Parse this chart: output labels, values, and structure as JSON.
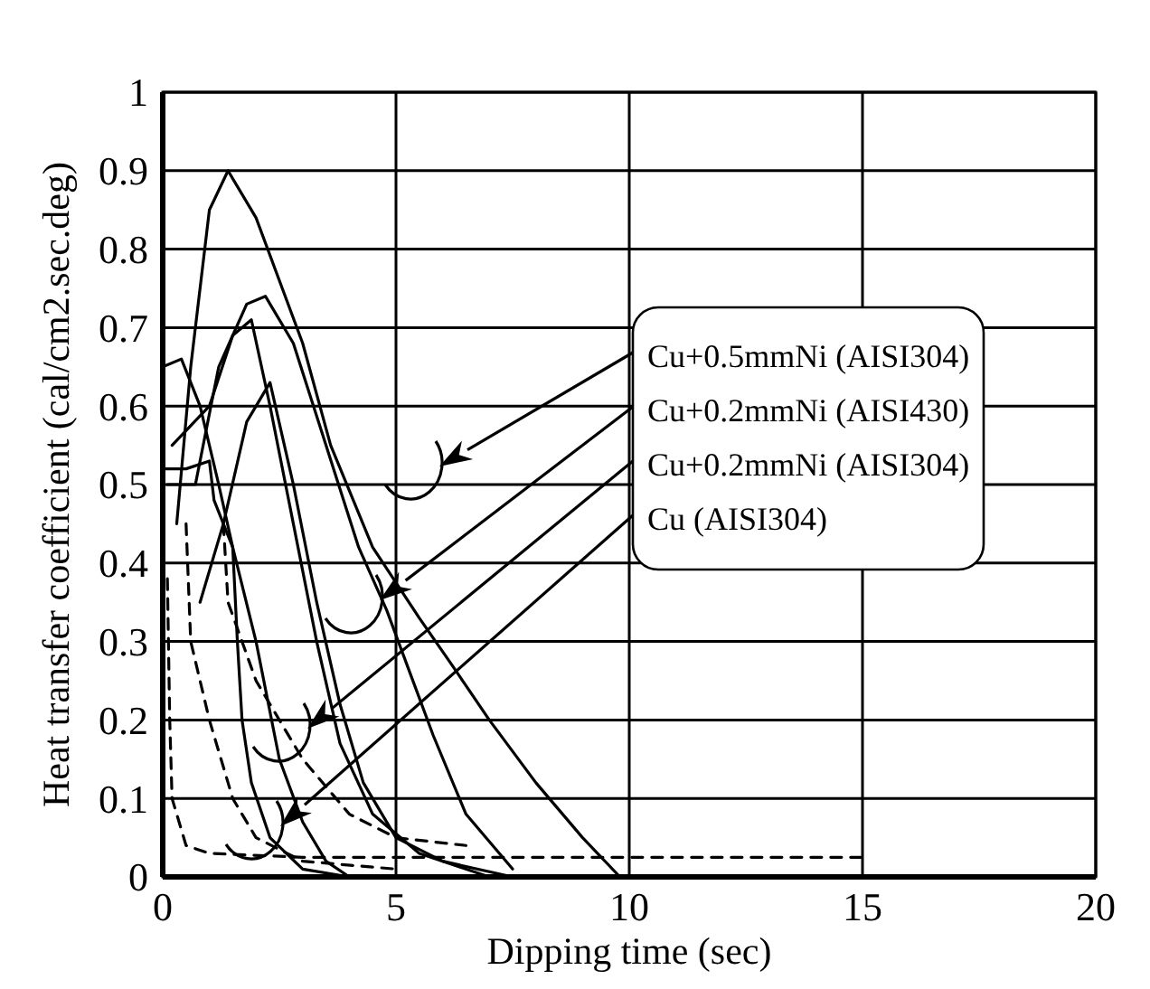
{
  "chart_data": {
    "type": "line",
    "xlabel": "Dipping time (sec)",
    "ylabel": "Heat transfer coefficient (cal/cm2.sec.deg)",
    "xlim": [
      0,
      20
    ],
    "ylim": [
      0,
      1
    ],
    "xticks": [
      0,
      5,
      10,
      15,
      20
    ],
    "yticks": [
      0,
      0.1,
      0.2,
      0.3,
      0.4,
      0.5,
      0.6,
      0.7,
      0.8,
      0.9,
      1
    ],
    "grid": true,
    "marker": "none",
    "series": [
      {
        "color": "#000000",
        "x": [
          0.3,
          0.6,
          1.0,
          1.4,
          2.0,
          3.0,
          3.6,
          4.5,
          5.5,
          6.2,
          7.0,
          8.0,
          9.0,
          9.8
        ],
        "values": [
          0.45,
          0.65,
          0.85,
          0.9,
          0.84,
          0.68,
          0.55,
          0.42,
          0.33,
          0.27,
          0.2,
          0.12,
          0.05,
          0
        ]
      },
      {
        "color": "#000000",
        "x": [
          0.1,
          0.7,
          1.2,
          1.8,
          2.2,
          2.8,
          3.5,
          4.2,
          4.8,
          5.3,
          5.8,
          6.5,
          7.5
        ],
        "values": [
          0.5,
          0.5,
          0.65,
          0.73,
          0.74,
          0.68,
          0.55,
          0.42,
          0.34,
          0.26,
          0.18,
          0.08,
          0.01
        ]
      },
      {
        "color": "#000000",
        "x": [
          0.2,
          1.0,
          1.5,
          1.9,
          2.3,
          2.8,
          3.3,
          3.8,
          4.5,
          5.5,
          7.0
        ],
        "values": [
          0.55,
          0.6,
          0.69,
          0.71,
          0.6,
          0.45,
          0.3,
          0.17,
          0.08,
          0.03,
          0
        ]
      },
      {
        "color": "#000000",
        "x": [
          0.8,
          1.3,
          1.8,
          2.3,
          2.8,
          3.3,
          3.8,
          4.3,
          5.0,
          6.0,
          7.5
        ],
        "values": [
          0.35,
          0.45,
          0.58,
          0.63,
          0.5,
          0.35,
          0.22,
          0.12,
          0.05,
          0.02,
          0
        ]
      },
      {
        "color": "#000000",
        "x": [
          0,
          0.5,
          1.0,
          1.1,
          1.5,
          2.0,
          2.5,
          3.0,
          3.5,
          4.0
        ],
        "values": [
          0.52,
          0.52,
          0.53,
          0.48,
          0.42,
          0.3,
          0.15,
          0.07,
          0.02,
          0
        ]
      },
      {
        "color": "#000000",
        "x": [
          0,
          0.4,
          0.8,
          1.2,
          1.5,
          1.6,
          1.7,
          1.9,
          2.3,
          3.0,
          4.0
        ],
        "values": [
          0.65,
          0.66,
          0.6,
          0.5,
          0.42,
          0.3,
          0.2,
          0.12,
          0.05,
          0.01,
          0
        ]
      },
      {
        "color": "#000000",
        "line_style": "dashed",
        "x": [
          0.1,
          0.15,
          0.2,
          0.5,
          1.0,
          3.0,
          15.0
        ],
        "values": [
          0.38,
          0.2,
          0.1,
          0.04,
          0.03,
          0.025,
          0.025
        ]
      },
      {
        "color": "#000000",
        "line_style": "dashed",
        "x": [
          1.3,
          1.4,
          2.0,
          3.0,
          4.0,
          5.0,
          6.5
        ],
        "values": [
          0.45,
          0.35,
          0.25,
          0.15,
          0.08,
          0.05,
          0.04
        ]
      },
      {
        "color": "#000000",
        "line_style": "dashed",
        "x": [
          0.5,
          0.6,
          1.0,
          1.5,
          2.0,
          3.0,
          5.0
        ],
        "values": [
          0.45,
          0.3,
          0.2,
          0.1,
          0.05,
          0.02,
          0.01
        ]
      }
    ],
    "annotations": [
      "Cu+0.5mmNi (AISI304)",
      "Cu+0.2mmNi (AISI430)",
      "Cu+0.2mmNi (AISI304)",
      "Cu (AISI304)"
    ]
  }
}
